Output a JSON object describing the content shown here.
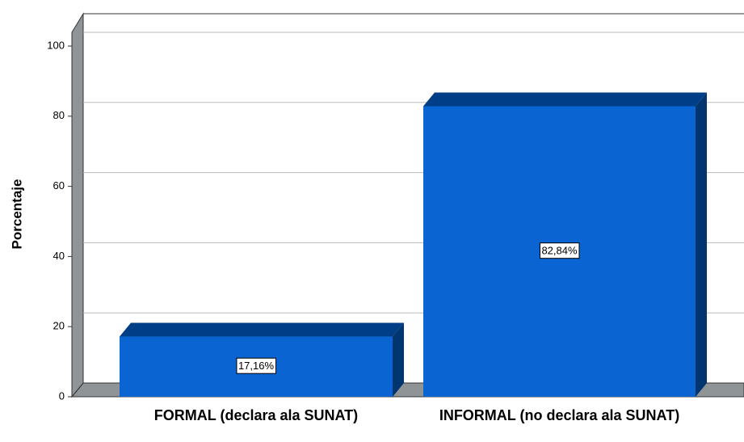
{
  "chart_data": {
    "type": "bar",
    "y_label": "Porcentaje",
    "categories": [
      "FORMAL (declara ala SUNAT)",
      "INFORMAL (no declara ala SUNAT)"
    ],
    "values": [
      17.16,
      82.84
    ],
    "value_labels": [
      "17,16%",
      "82,84%"
    ],
    "color": "#0a64d2",
    "ylim": [
      0,
      100
    ],
    "yticks": [
      0,
      20,
      40,
      60,
      80,
      100
    ],
    "grid": true
  }
}
